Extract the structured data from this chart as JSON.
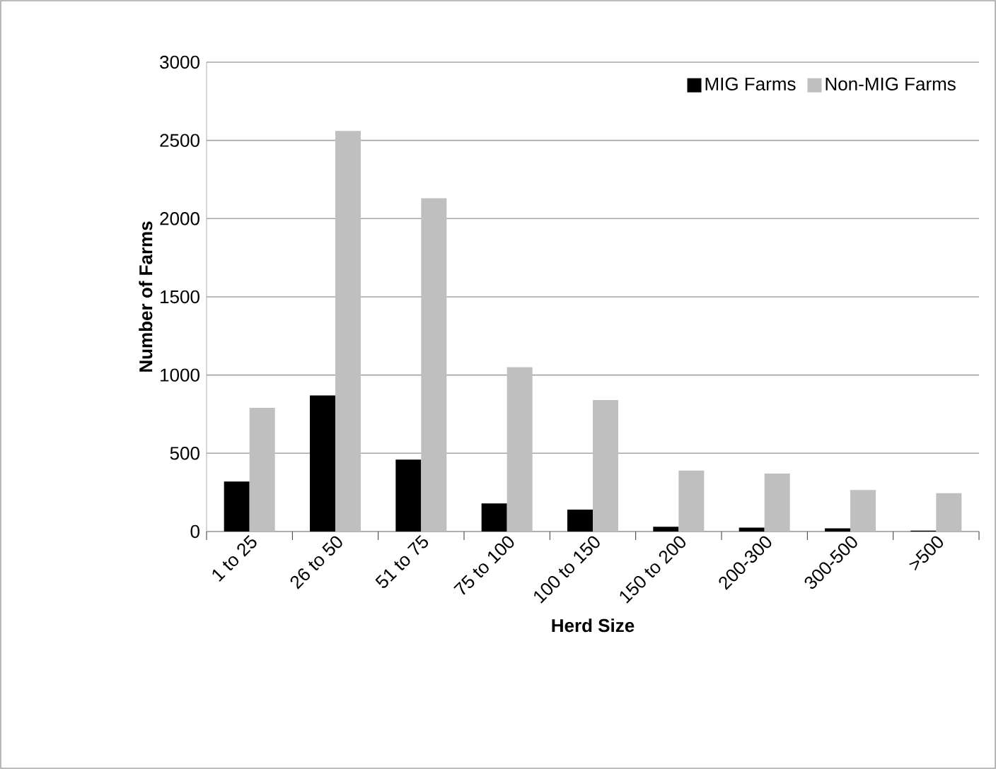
{
  "chart_data": {
    "type": "bar",
    "xlabel": "Herd Size",
    "ylabel": "Number of Farms",
    "categories": [
      "1 to 25",
      "26 to 50",
      "51 to 75",
      "75 to 100",
      "100 to 150",
      "150 to 200",
      "200-300",
      "300-500",
      ">500"
    ],
    "series": [
      {
        "name": "MIG Farms",
        "color": "#000000",
        "values": [
          320,
          870,
          460,
          180,
          140,
          30,
          25,
          20,
          5
        ]
      },
      {
        "name": "Non-MIG Farms",
        "color": "#bfbfbf",
        "values": [
          790,
          2560,
          2130,
          1050,
          840,
          390,
          370,
          265,
          245
        ]
      }
    ],
    "ylim": [
      0,
      3000
    ],
    "yticks": [
      0,
      500,
      1000,
      1500,
      2000,
      2500,
      3000
    ],
    "grid": "y",
    "legend": "top right"
  }
}
